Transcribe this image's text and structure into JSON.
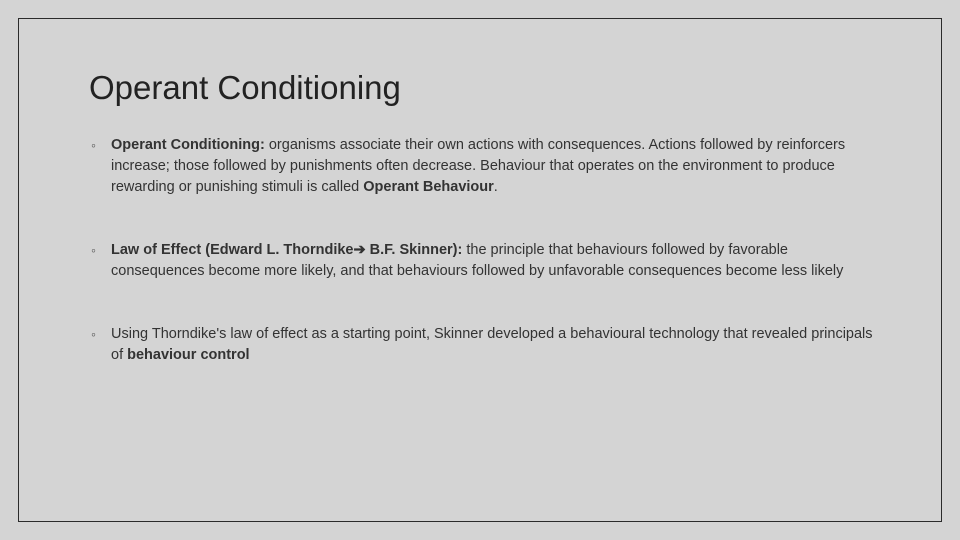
{
  "slide": {
    "title": "Operant Conditioning",
    "title_fontsize": 33,
    "title_color": "#222222",
    "body_fontsize": 14.5,
    "body_color": "#333333",
    "background_color": "#d4d4d4",
    "border_color": "#2b2b2b",
    "bullet_glyph": "◦",
    "bullets": [
      {
        "lead_bold": "Operant Conditioning:",
        "text_after_lead": " organisms associate their own actions with consequences. Actions followed by reinforcers increase; those followed by punishments often decrease. Behaviour that operates on the environment to produce rewarding or punishing stimuli is called ",
        "trailing_bold": "Operant Behaviour",
        "trailing_punct": "."
      },
      {
        "lead_bold_pre_arrow": "Law of Effect (Edward L. Thorndike",
        "arrow": "➔",
        "lead_bold_post_arrow": " B.F. Skinner):",
        "text_after_lead": " the principle that behaviours followed by favorable consequences become more likely, and that behaviours followed by unfavorable consequences become less likely"
      },
      {
        "text_before": "Using Thorndike's law of effect as a starting point, Skinner developed a behavioural technology that revealed principals of ",
        "trailing_bold": "behaviour control"
      }
    ]
  }
}
